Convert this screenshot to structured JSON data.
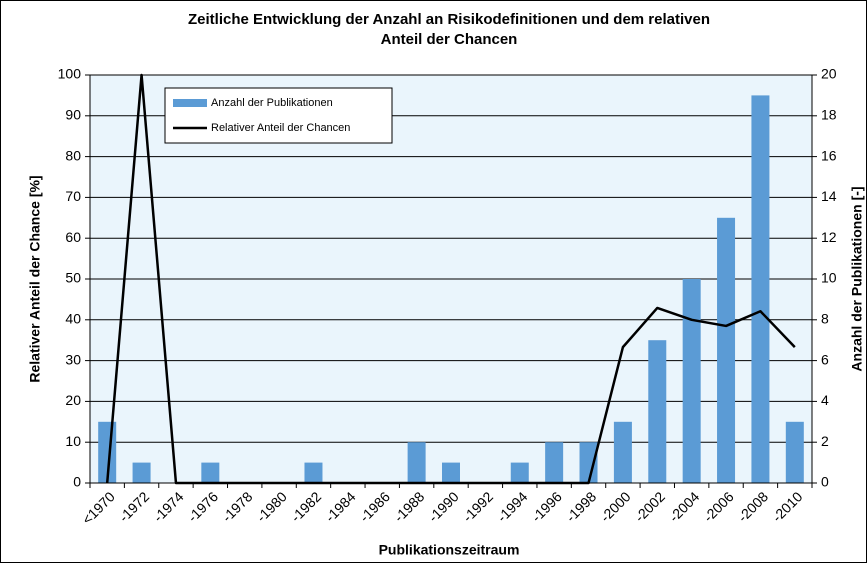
{
  "chart_data": {
    "type": "bar_line",
    "title": [
      "Zeitliche Entwicklung der Anzahl an Risikodefinitionen und dem relativen",
      "Anteil der Chancen"
    ],
    "x_label": "Publikationszeitraum",
    "y_label": "Relativer Anteil der Chance [%]",
    "y2_label": "Anzahl der Publikationen [-]",
    "categories": [
      "<1970",
      "-1972",
      "-1974",
      "-1976",
      "-1978",
      "-1980",
      "-1982",
      "-1984",
      "-1986",
      "-1988",
      "-1990",
      "-1992",
      "-1994",
      "-1996",
      "-1998",
      "-2000",
      "-2002",
      "-2004",
      "-2006",
      "-2008",
      "-2010"
    ],
    "series": [
      {
        "name": "Anzahl der Publikationen",
        "type": "bar",
        "axis": "y2",
        "color": "#5b9bd5",
        "values": [
          3,
          1,
          0,
          1,
          0,
          0,
          1,
          0,
          0,
          2,
          1,
          0,
          1,
          2,
          2,
          3,
          7,
          10,
          13,
          19,
          3
        ]
      },
      {
        "name": "Relativer Anteil der Chancen",
        "type": "line",
        "axis": "y",
        "color": "#000000",
        "values": [
          0,
          100,
          0,
          0,
          0,
          0,
          0,
          0,
          0,
          0,
          0,
          0,
          0,
          0,
          0,
          33.3,
          42.9,
          40,
          38.5,
          42.1,
          33.3
        ]
      }
    ],
    "ylim": [
      0,
      100
    ],
    "yticks": [
      0,
      10,
      20,
      30,
      40,
      50,
      60,
      70,
      80,
      90,
      100
    ],
    "y2lim": [
      0,
      20
    ],
    "y2ticks": [
      0,
      2,
      4,
      6,
      8,
      10,
      12,
      14,
      16,
      18,
      20
    ],
    "grid": true,
    "legend": "top-left"
  }
}
